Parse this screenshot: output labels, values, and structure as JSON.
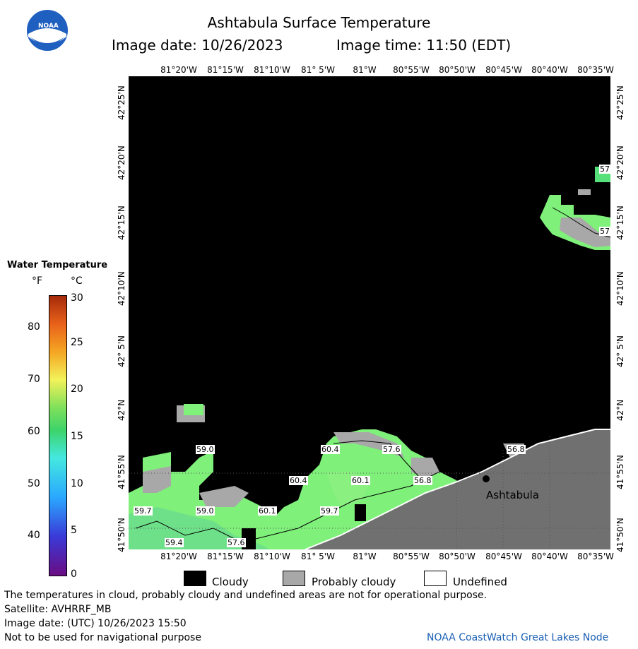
{
  "header": {
    "title": "Ashtabula Surface Temperature",
    "image_date": "Image date: 10/26/2023",
    "image_time": "Image time: 11:50 (EDT)"
  },
  "logo": {
    "text": "NOAA"
  },
  "axes": {
    "longitude_ticks": [
      "81°20'W",
      "81°15'W",
      "81°10'W",
      "81° 5'W",
      "81°W",
      "80°55'W",
      "80°50'W",
      "80°45'W",
      "80°40'W",
      "80°35'W"
    ],
    "latitude_ticks": [
      "42°25'N",
      "42°20'N",
      "42°15'N",
      "42°10'N",
      "42° 5'N",
      "42°N",
      "41°55'N",
      "41°50'N"
    ]
  },
  "map": {
    "place_label": "Ashtabula",
    "temperature_labels": [
      "59.0",
      "60.4",
      "57.6",
      "56.8",
      "60.4",
      "60.1",
      "56.8",
      "59.7",
      "59.0",
      "60.1",
      "59.7",
      "59.4",
      "57.6",
      "57",
      "57"
    ]
  },
  "legend": {
    "title": "Water Temperature",
    "unit_f": "°F",
    "unit_c": "°C",
    "f_ticks": [
      "80",
      "70",
      "60",
      "50",
      "40"
    ],
    "c_ticks": [
      "30",
      "25",
      "20",
      "15",
      "10",
      "5",
      "0"
    ],
    "colors": [
      "#6a0d83",
      "#2f3fd6",
      "#2aa8ff",
      "#44e8e0",
      "#3dd46a",
      "#7fe05a",
      "#f2f25a",
      "#f5a623",
      "#e8611a",
      "#a52a0a"
    ]
  },
  "key": {
    "cloudy": "Cloudy",
    "probably_cloudy": "Probably cloudy",
    "undefined": "Undefined",
    "cloudy_color": "#000000",
    "probably_cloudy_color": "#a8a8a8",
    "undefined_color": "#ffffff"
  },
  "footer": {
    "disclaimer": "The temperatures in cloud, probably cloudy and undefined areas are not for operational purpose.",
    "satellite": "Satellite: AVHRRF_MB",
    "utc_date": "Image date: (UTC) 10/26/2023  15:50",
    "nav_warning": "Not to be used for navigational purpose",
    "credit": "NOAA CoastWatch Great Lakes Node"
  }
}
